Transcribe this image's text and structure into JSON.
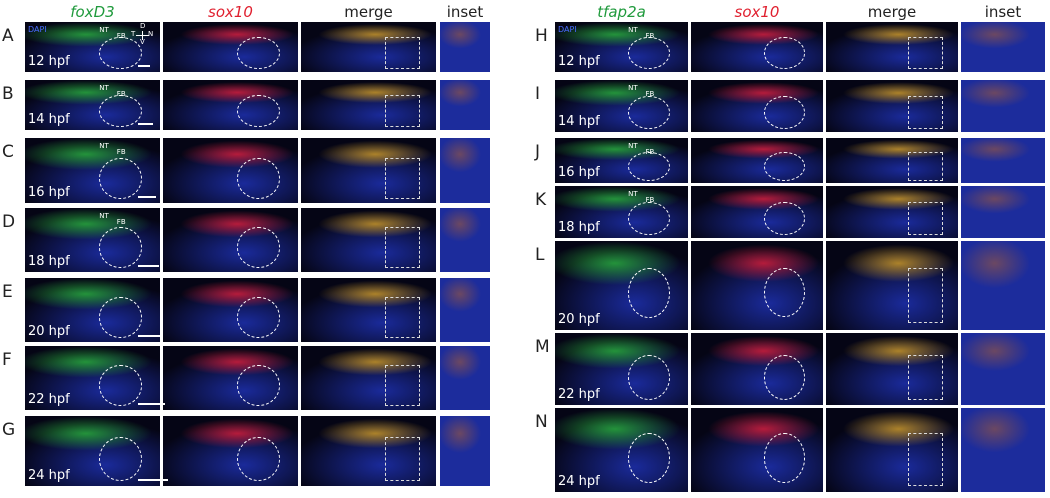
{
  "left": {
    "headers": [
      "foxD3",
      "sox10",
      "merge",
      "inset"
    ],
    "dapi": "DAPI",
    "compass": [
      "D",
      "T",
      "N",
      "V"
    ],
    "rows": [
      {
        "letter": "A",
        "stage": "12 hpf",
        "labels": [
          "NT",
          "FB"
        ]
      },
      {
        "letter": "B",
        "stage": "14 hpf",
        "labels": [
          "NT",
          "FB"
        ]
      },
      {
        "letter": "C",
        "stage": "16 hpf",
        "labels": [
          "NT",
          "FB"
        ]
      },
      {
        "letter": "D",
        "stage": "18 hpf",
        "labels": [
          "NT",
          "FB"
        ]
      },
      {
        "letter": "E",
        "stage": "20 hpf"
      },
      {
        "letter": "F",
        "stage": "22 hpf"
      },
      {
        "letter": "G",
        "stage": "24 hpf"
      }
    ]
  },
  "right": {
    "headers": [
      "tfap2a",
      "sox10",
      "merge",
      "inset"
    ],
    "dapi": "DAPI",
    "rows": [
      {
        "letter": "H",
        "stage": "12 hpf",
        "labels": [
          "NT",
          "FB"
        ]
      },
      {
        "letter": "I",
        "stage": "14 hpf",
        "labels": [
          "NT",
          "FB"
        ]
      },
      {
        "letter": "J",
        "stage": "16 hpf",
        "labels": [
          "NT",
          "FB"
        ]
      },
      {
        "letter": "K",
        "stage": "18 hpf",
        "labels": [
          "NT",
          "FB"
        ]
      },
      {
        "letter": "L",
        "stage": "20 hpf"
      },
      {
        "letter": "M",
        "stage": "22 hpf"
      },
      {
        "letter": "N",
        "stage": "24 hpf"
      }
    ]
  }
}
